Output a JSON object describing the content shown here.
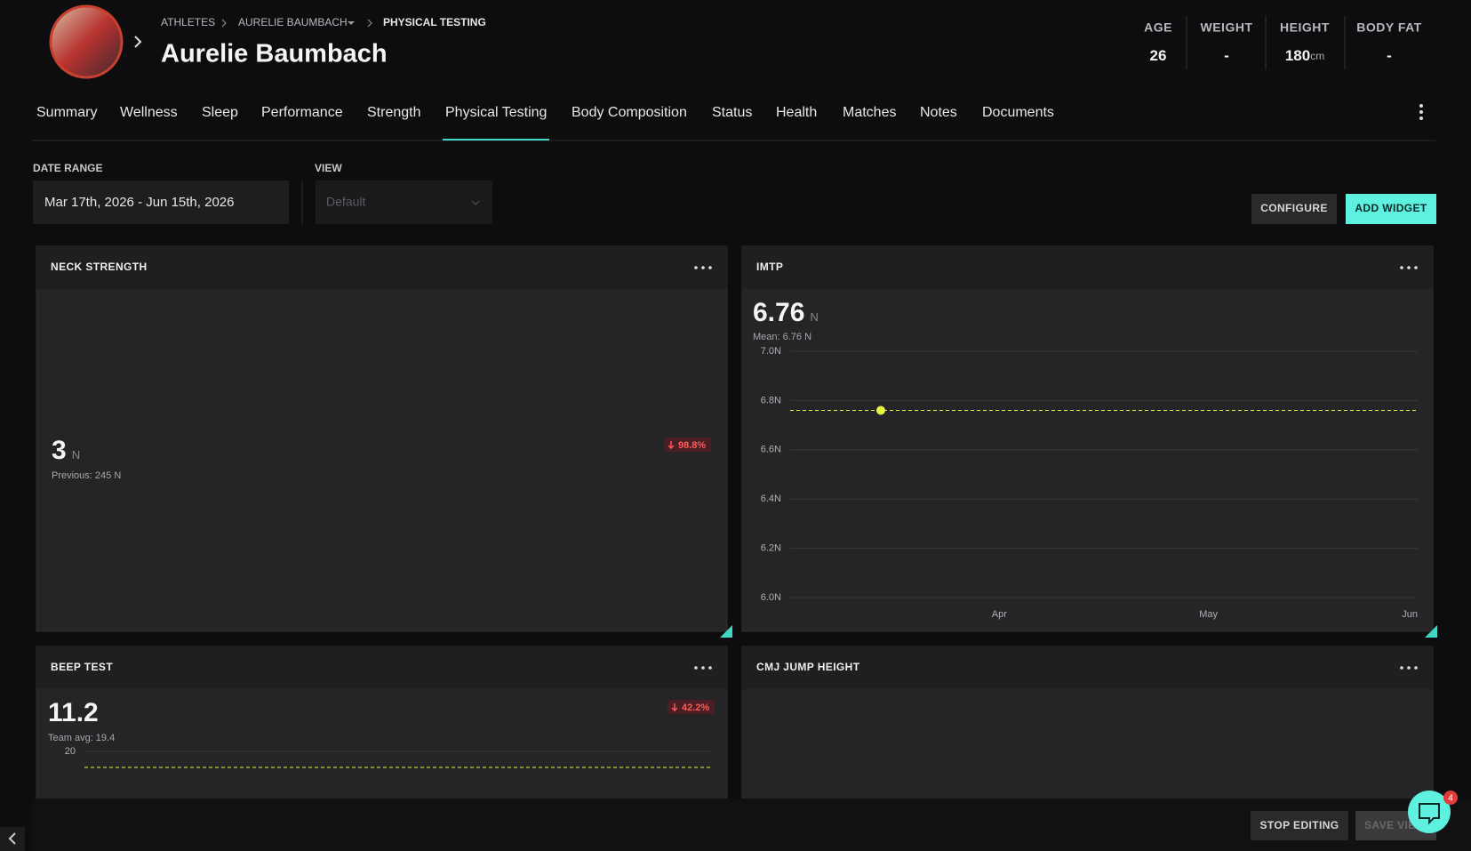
{
  "breadcrumb": [
    "ATHLETES",
    "AURELIE BAUMBACH",
    "PHYSICAL TESTING"
  ],
  "athlete_name": "Aurelie Baumbach",
  "stats": [
    {
      "label": "AGE",
      "value": "26"
    },
    {
      "label": "WEIGHT",
      "value": "-"
    },
    {
      "label": "HEIGHT",
      "value": "180",
      "unit": "cm"
    },
    {
      "label": "BODY FAT",
      "value": "-"
    }
  ],
  "tabs": [
    "Summary",
    "Wellness",
    "Sleep",
    "Performance",
    "Strength",
    "Physical Testing",
    "Body Composition",
    "Status",
    "Health",
    "Matches",
    "Notes",
    "Documents"
  ],
  "active_tab": 5,
  "filters": {
    "date_range_label": "DATE RANGE",
    "date_range": "Mar 17th, 2026 - Jun 15th, 2026",
    "view_label": "VIEW",
    "view": "Default"
  },
  "buttons": {
    "configure": "CONFIGURE",
    "add_widget": "ADD WIDGET",
    "stop_editing": "STOP EDITING",
    "save_view": "SAVE VIEW"
  },
  "notification_count": 4,
  "widgets": {
    "neck_strength": {
      "title": "NECK STRENGTH",
      "value": "3",
      "unit": "N",
      "previous": "Previous: 245 N",
      "change": "98.8%"
    },
    "imtp": {
      "title": "IMTP",
      "value": "6.76",
      "unit": "N",
      "mean": "Mean: 6.76 N",
      "chart_data": {
        "type": "line",
        "x": [
          13
        ],
        "values": [
          6.76
        ],
        "color": "#e8f542",
        "reference_line": 6.76,
        "xlim": [
          0,
          90
        ],
        "xticks": [
          {
            "value": 30,
            "label": "Apr"
          },
          {
            "value": 60,
            "label": "May"
          },
          {
            "value": 90,
            "label": "Jun"
          }
        ],
        "ylim": [
          6.0,
          7.0
        ],
        "yticks": [
          {
            "value": 6.0,
            "label": "6.0N"
          },
          {
            "value": 6.2,
            "label": "6.2N"
          },
          {
            "value": 6.4,
            "label": "6.4N"
          },
          {
            "value": 6.6,
            "label": "6.6N"
          },
          {
            "value": 6.8,
            "label": "6.8N"
          },
          {
            "value": 7.0,
            "label": "7.0N"
          }
        ],
        "grid": true
      }
    },
    "beep_test": {
      "title": "BEEP TEST",
      "value": "11.2",
      "team_avg": "Team avg: 19.4",
      "change": "42.2%",
      "chart_data": {
        "type": "line",
        "reference_line": 19.4,
        "color": "#e8f542",
        "ylim": [
          0,
          20
        ],
        "yticks": [
          20
        ],
        "grid": true
      }
    },
    "cmj_jump_height": {
      "title": "CMJ JUMP HEIGHT"
    }
  }
}
